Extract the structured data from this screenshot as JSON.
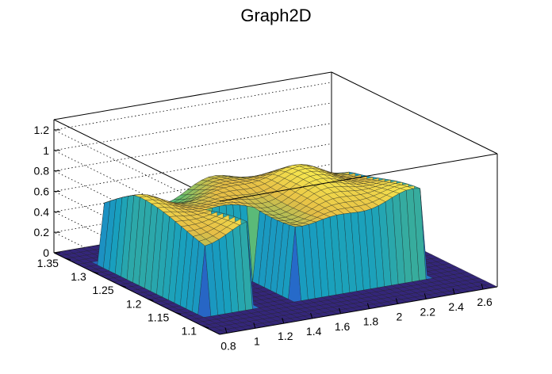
{
  "chart_data": {
    "type": "surface3d",
    "title": "Graph2D",
    "x_axis": {
      "ticks": [
        "0.8",
        "1",
        "1.2",
        "1.4",
        "1.6",
        "1.8",
        "2",
        "2.2",
        "2.4",
        "2.6"
      ],
      "range": [
        0.75,
        2.7
      ]
    },
    "y_axis": {
      "ticks": [
        "1.1",
        "1.15",
        "1.2",
        "1.25",
        "1.3",
        "1.35"
      ],
      "range": [
        1.07,
        1.37
      ]
    },
    "z_axis": {
      "ticks": [
        "0",
        "0.2",
        "0.4",
        "0.6",
        "0.8",
        "1",
        "1.2"
      ],
      "range": [
        0,
        1.3
      ]
    },
    "grid": true,
    "colormap": "viridis-like (blue to yellow)",
    "surface_description": "plateau of height ~0.7-0.85 across x 0.85-2.45 and y 1.12-1.32, with a gap at x 1.2-1.5 for y below 1.2, zero elsewhere"
  }
}
